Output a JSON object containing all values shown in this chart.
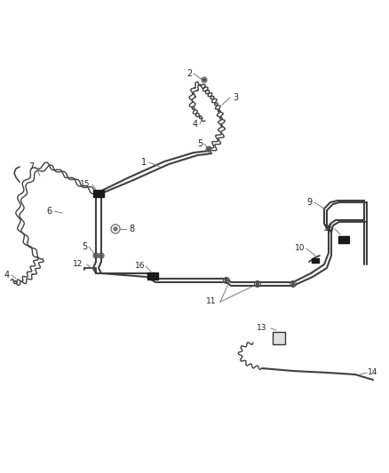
{
  "bg_color": "#ffffff",
  "line_color": "#404040",
  "label_color": "#222222",
  "figsize": [
    4.38,
    5.33
  ],
  "dpi": 100,
  "lw_main": 1.5,
  "lw_flex": 1.0,
  "lw_lead": 0.6,
  "label_fs": 7.0
}
